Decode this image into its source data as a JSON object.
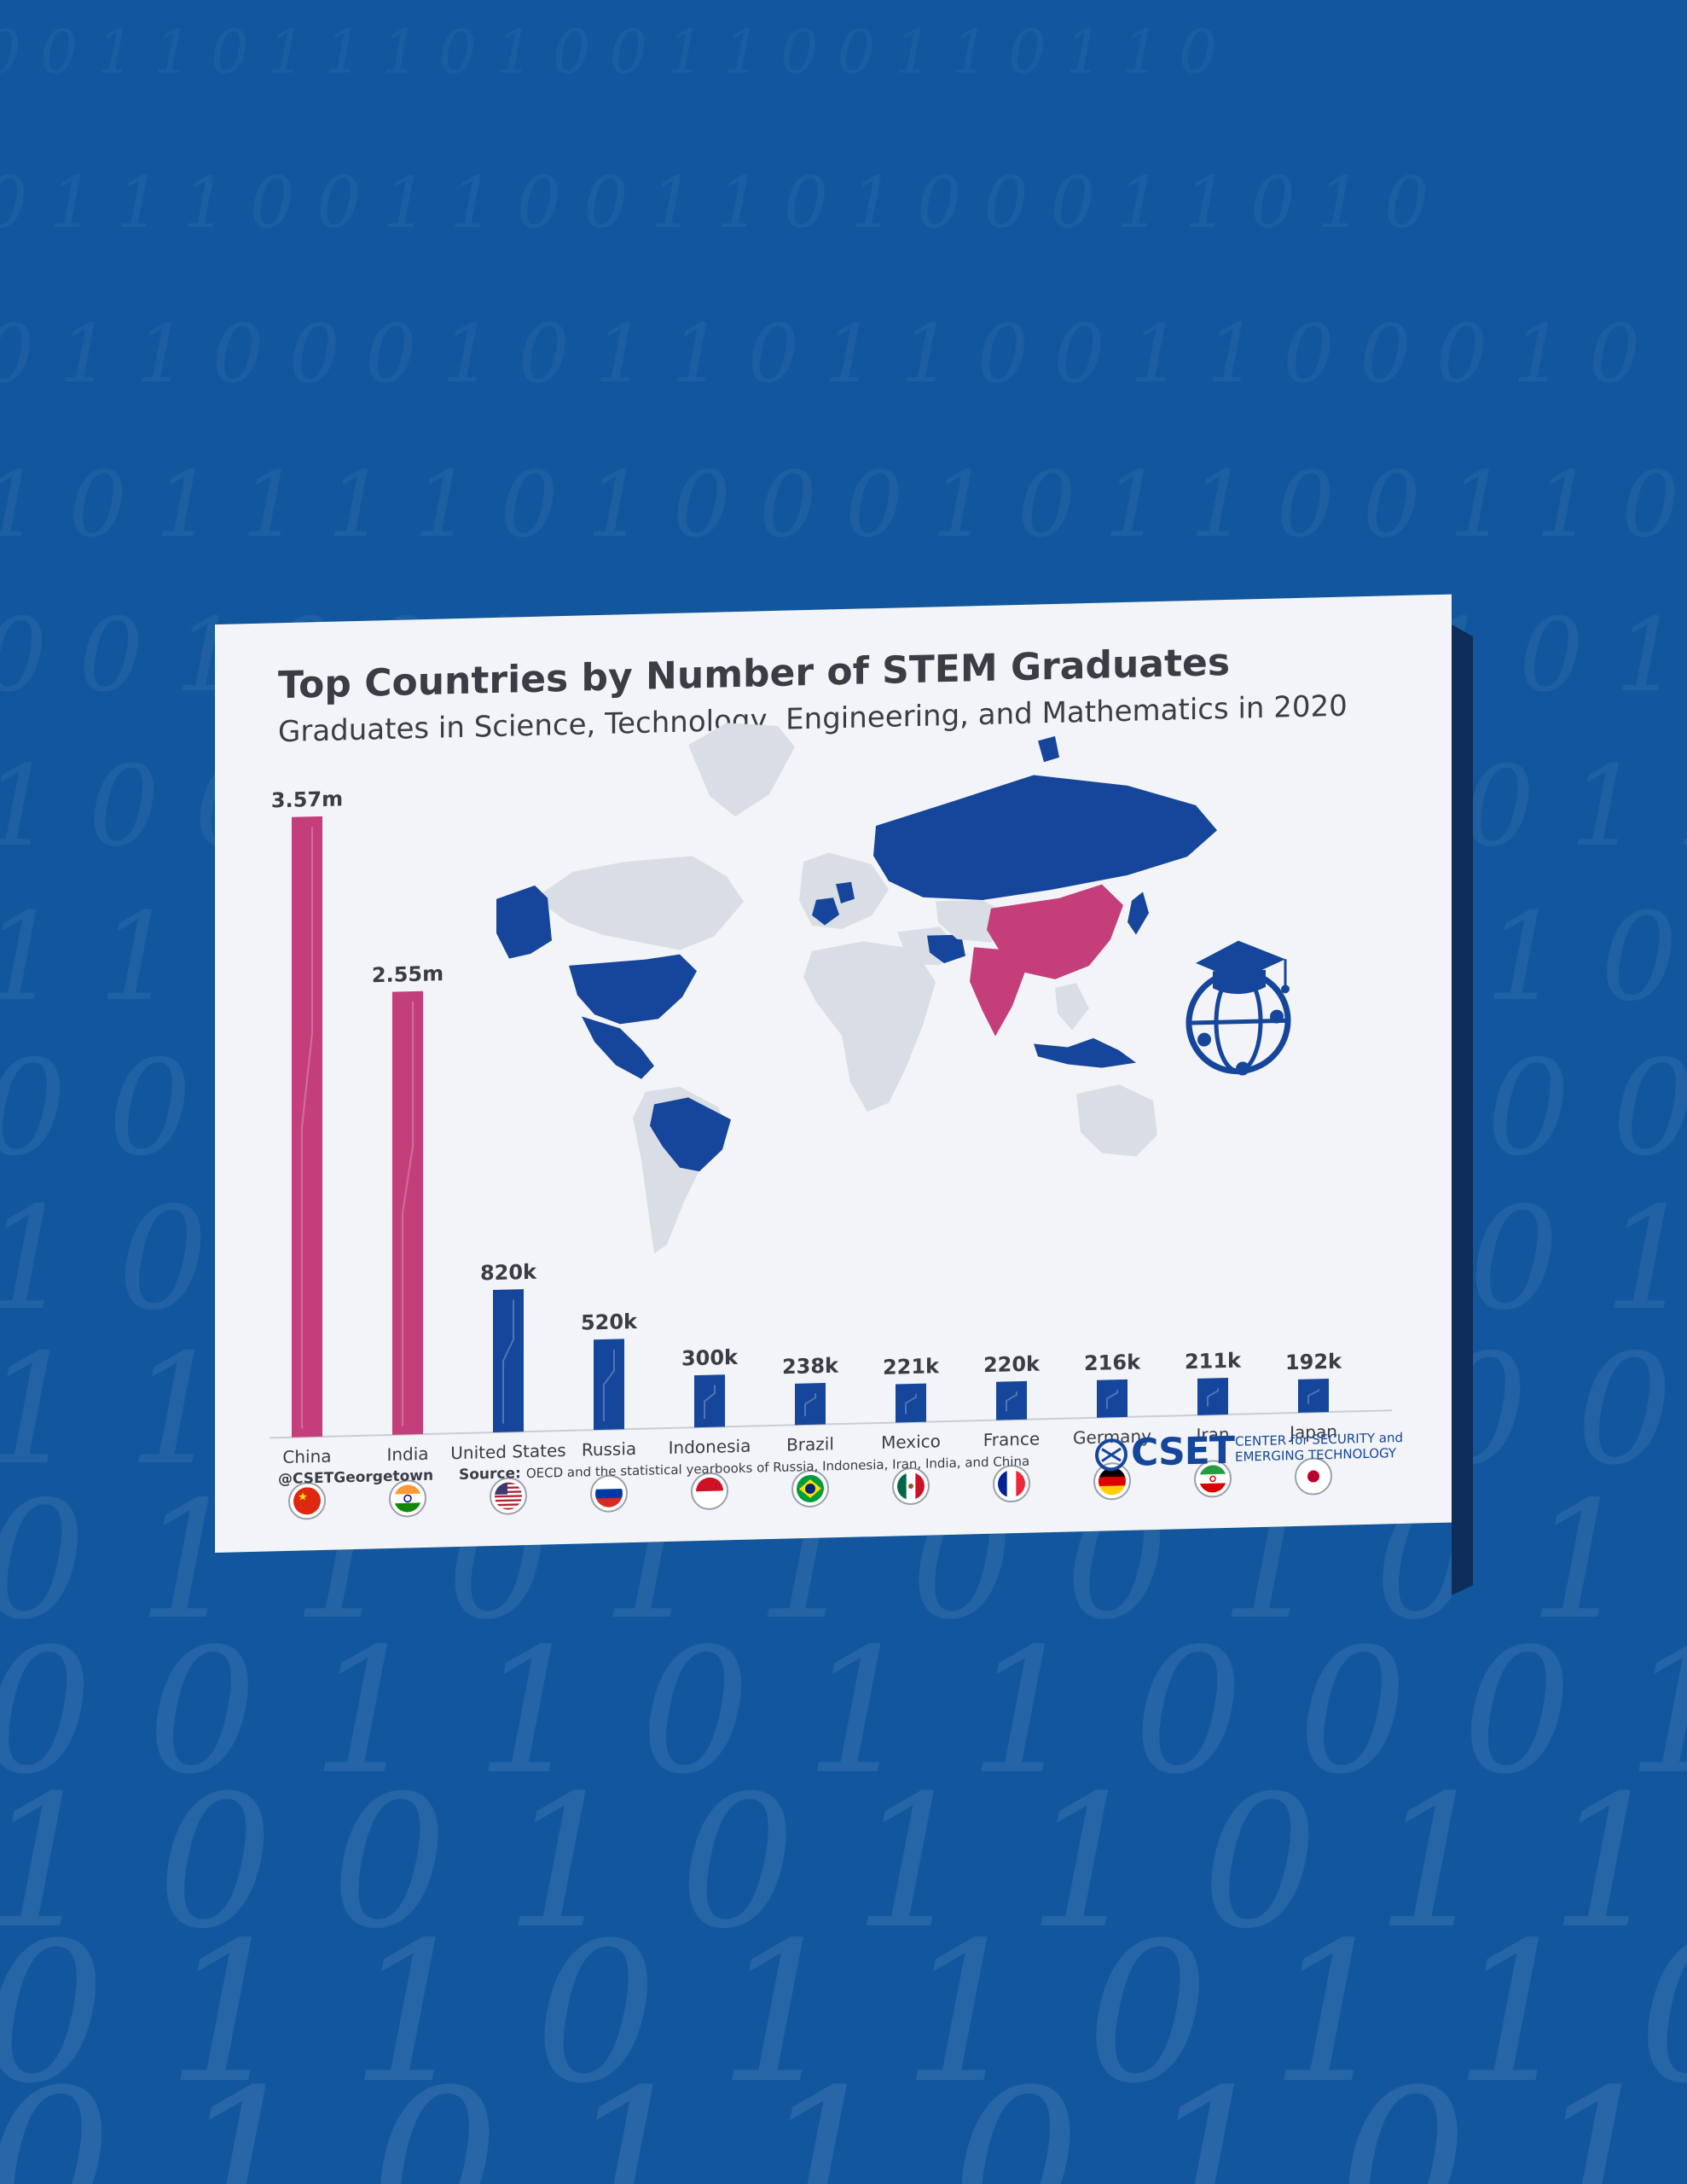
{
  "background": {
    "color": "#12579e",
    "digit_rows": [
      "0 0 1 1 0 1 1 1 0 1 0 0 1 1 0 0 1 1 0 1 1 0",
      "0 1 1 1 0 0 1 1 0 0 1 1 0 1 0 0 0 1 1 0 1 0",
      "0 1 1 0 0 0 1 0 1 1 0 1 1 0 0 1 1 0 0 0 1 0",
      "1 0 1 1 1 1 0 1 0 0 0 1 0 1 1 0 0 1 1 0 0 1",
      "0 0 1 0 0 1 1 0 1 1 1 0 0 0 1 1 0 1 1 0 1 0",
      "1 0 0 0 0 1 1 0 1 0 0 1 1 0 0 1 1 0 1 0 1 1",
      "1 1 1 0 1 1 0 0 1 1 0 0 0 1 0 0 1 1 0 1 1 0",
      "0 0 1 0 1 1 0 1 1 0 0 1 0 0 1 1 1 0 1 1 0 0",
      "1 0 1 0 1 0 0 1 0 1 1 0 1 0 1 0 0 1",
      "1 1 0 1 0 1 1 0 1 1 0 0 1 0 0 1 1 0",
      "0 1 1 0 1 1 0 0 1 0 1 1 0 0 1 0 1 0",
      "0 0 1 1 0 1 1 0 0 0 1 0 1 1 0 1",
      "1 0 0 1 0 1 1 0 1 1 0 0 1 0 0 1",
      "0 1 1 0 1 1 0 1 1 0 0 1 0 1 1 0",
      "0 1 0 1 1 0 1 0 1 1 0 0 0 1 1 0 1 0"
    ]
  },
  "card": {
    "title": "Top Countries by Number of STEM Graduates",
    "subtitle": "Graduates in Science, Technology, Engineering, and Mathematics in 2020",
    "handle": "@CSETGeorgetown",
    "source_label": "Source:",
    "source_text": "OECD and the statistical yearbooks of Russia, Indonesia, Iran, India, and China",
    "brand_name": "CSET",
    "brand_sub_line1": "CENTER for SECURITY and",
    "brand_sub_line2": "EMERGING TECHNOLOGY",
    "colors": {
      "highlight": "#c43e7a",
      "primary": "#16469b",
      "map_land": "#d9dee6",
      "text": "#3a3d44",
      "card": "#f2f4f7"
    },
    "graduation_icon": "graduation-cap-globe-icon"
  },
  "chart_data": {
    "type": "bar",
    "title": "Top Countries by Number of STEM Graduates",
    "subtitle": "Graduates in Science, Technology, Engineering, and Mathematics in 2020",
    "categories": [
      "China",
      "India",
      "United States",
      "Russia",
      "Indonesia",
      "Brazil",
      "Mexico",
      "France",
      "Germany",
      "Iran",
      "Japan"
    ],
    "values": [
      3570000,
      2550000,
      820000,
      520000,
      300000,
      238000,
      221000,
      220000,
      216000,
      211000,
      192000
    ],
    "data_labels": [
      "3.57m",
      "2.55m",
      "820k",
      "520k",
      "300k",
      "238k",
      "221k",
      "220k",
      "216k",
      "211k",
      "192k"
    ],
    "highlighted": [
      "China",
      "India"
    ],
    "flags": [
      "china-flag-icon",
      "india-flag-icon",
      "usa-flag-icon",
      "russia-flag-icon",
      "indonesia-flag-icon",
      "brazil-flag-icon",
      "mexico-flag-icon",
      "france-flag-icon",
      "germany-flag-icon",
      "iran-flag-icon",
      "japan-flag-icon"
    ],
    "xlabel": "",
    "ylabel": "",
    "ylim": [
      0,
      3570000
    ],
    "grid": false,
    "legend": "none"
  }
}
